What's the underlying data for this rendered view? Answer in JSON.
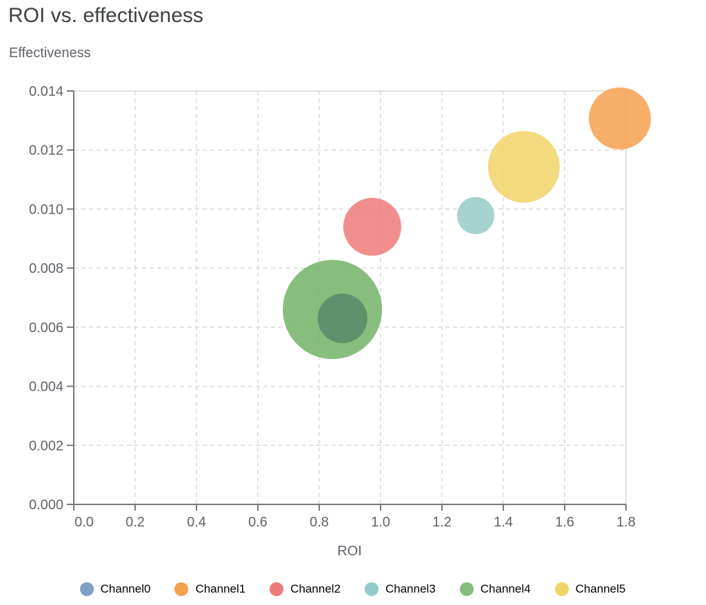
{
  "chart_data": {
    "type": "scatter",
    "title": "ROI vs. effectiveness",
    "xlabel": "ROI",
    "ylabel": "Effectiveness",
    "xlim": [
      0,
      1.8
    ],
    "ylim": [
      0,
      0.014
    ],
    "x_ticks": [
      "0.0",
      "0.2",
      "0.4",
      "0.6",
      "0.8",
      "1.0",
      "1.2",
      "1.4",
      "1.6",
      "1.8"
    ],
    "y_ticks": [
      "0.000",
      "0.002",
      "0.004",
      "0.006",
      "0.008",
      "0.010",
      "0.012",
      "0.014"
    ],
    "grid": true,
    "legend_position": "bottom",
    "series": [
      {
        "name": "Channel0",
        "color": "#7f9fc4",
        "x": 0.876,
        "y": 0.0063,
        "size": 36
      },
      {
        "name": "Channel1",
        "color": "#f6a04d",
        "x": 1.78,
        "y": 0.01307,
        "size": 45
      },
      {
        "name": "Channel2",
        "color": "#ec7a78",
        "x": 0.973,
        "y": 0.0094,
        "size": 42
      },
      {
        "name": "Channel3",
        "color": "#94cbc8",
        "x": 1.31,
        "y": 0.00978,
        "size": 27
      },
      {
        "name": "Channel4",
        "color": "#72b266",
        "x": 0.843,
        "y": 0.0066,
        "size": 72
      },
      {
        "name": "Channel5",
        "color": "#f1d467",
        "x": 1.467,
        "y": 0.01143,
        "size": 52
      }
    ]
  }
}
